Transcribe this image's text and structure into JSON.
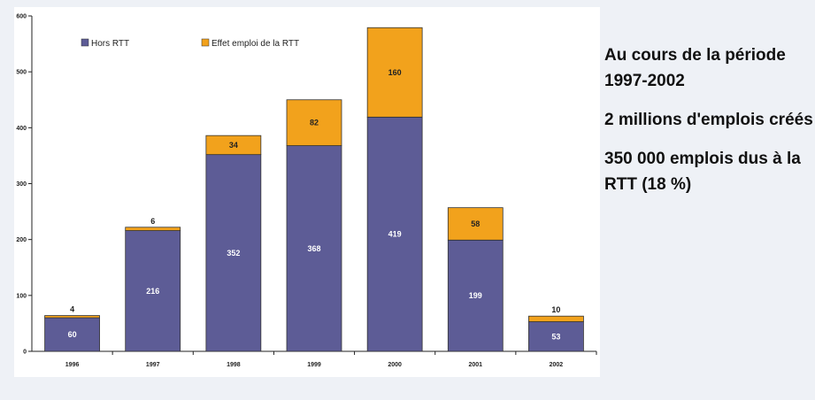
{
  "chart_data": {
    "type": "bar",
    "stacked": true,
    "categories": [
      "1996",
      "1997",
      "1998",
      "1999",
      "2000",
      "2001",
      "2002"
    ],
    "series": [
      {
        "name": "Hors RTT",
        "color": "#5d5c96",
        "values": [
          60,
          216,
          352,
          368,
          419,
          199,
          53
        ],
        "labels": [
          "60",
          "216",
          "352",
          "368",
          "419",
          "199",
          "53"
        ]
      },
      {
        "name": "Effet emploi de la RTT",
        "color": "#f2a21c",
        "values": [
          4,
          6,
          34,
          82,
          160,
          58,
          10
        ],
        "labels": [
          "4",
          "6",
          "34",
          "82",
          "160",
          "58",
          "10"
        ]
      }
    ],
    "ylim": [
      0,
      600
    ],
    "yticks": [
      "0",
      "100",
      "200",
      "300",
      "400",
      "500",
      "600"
    ],
    "grid": false,
    "legend": "top-left"
  },
  "side_text": {
    "line1": "Au cours de la période 1997-2002",
    "line2": "2 millions d'emplois créés",
    "line3": "350 000 emplois dus à la RTT (18 %)"
  }
}
